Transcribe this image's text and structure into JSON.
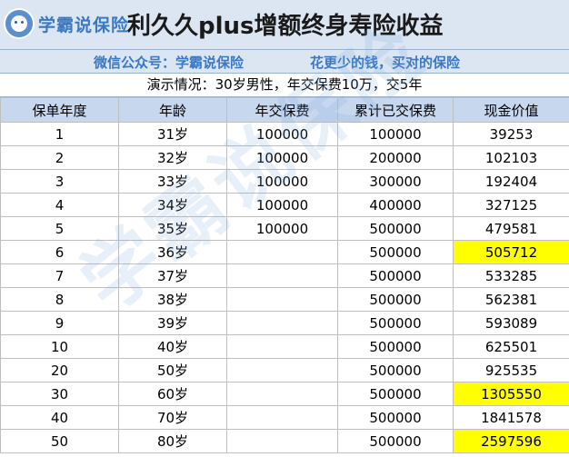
{
  "header": {
    "logo_text": "学霸说保险",
    "title": "利久久plus增额终身寿险收益"
  },
  "subheader": {
    "left": "微信公众号：学霸说保险",
    "right": "花更少的钱，买对的保险"
  },
  "demo": "演示情况：30岁男性，年交保费10万，交5年",
  "table": {
    "columns": [
      "保单年度",
      "年龄",
      "年交保费",
      "累计已交保费",
      "现金价值"
    ],
    "rows": [
      {
        "year": "1",
        "age": "31岁",
        "premium": "100000",
        "cumulative": "100000",
        "cash": "39253",
        "highlight": false
      },
      {
        "year": "2",
        "age": "32岁",
        "premium": "100000",
        "cumulative": "200000",
        "cash": "102103",
        "highlight": false
      },
      {
        "year": "3",
        "age": "33岁",
        "premium": "100000",
        "cumulative": "300000",
        "cash": "192404",
        "highlight": false
      },
      {
        "year": "4",
        "age": "34岁",
        "premium": "100000",
        "cumulative": "400000",
        "cash": "327125",
        "highlight": false
      },
      {
        "year": "5",
        "age": "35岁",
        "premium": "100000",
        "cumulative": "500000",
        "cash": "479581",
        "highlight": false
      },
      {
        "year": "6",
        "age": "36岁",
        "premium": "",
        "cumulative": "500000",
        "cash": "505712",
        "highlight": true
      },
      {
        "year": "7",
        "age": "37岁",
        "premium": "",
        "cumulative": "500000",
        "cash": "533285",
        "highlight": false
      },
      {
        "year": "8",
        "age": "38岁",
        "premium": "",
        "cumulative": "500000",
        "cash": "562381",
        "highlight": false
      },
      {
        "year": "9",
        "age": "39岁",
        "premium": "",
        "cumulative": "500000",
        "cash": "593089",
        "highlight": false
      },
      {
        "year": "10",
        "age": "40岁",
        "premium": "",
        "cumulative": "500000",
        "cash": "625501",
        "highlight": false
      },
      {
        "year": "20",
        "age": "50岁",
        "premium": "",
        "cumulative": "500000",
        "cash": "925535",
        "highlight": false
      },
      {
        "year": "30",
        "age": "60岁",
        "premium": "",
        "cumulative": "500000",
        "cash": "1305550",
        "highlight": true
      },
      {
        "year": "40",
        "age": "70岁",
        "premium": "",
        "cumulative": "500000",
        "cash": "1841578",
        "highlight": false
      },
      {
        "year": "50",
        "age": "80岁",
        "premium": "",
        "cumulative": "500000",
        "cash": "2597596",
        "highlight": true
      }
    ]
  },
  "watermark": "学霸说保险",
  "colors": {
    "header_bg": "#dce6f2",
    "column_header_bg": "#c7d7ee",
    "accent_blue": "#3b78c4",
    "highlight": "#ffff00"
  },
  "icons": {
    "logo": "cartoon-face-logo-icon"
  }
}
